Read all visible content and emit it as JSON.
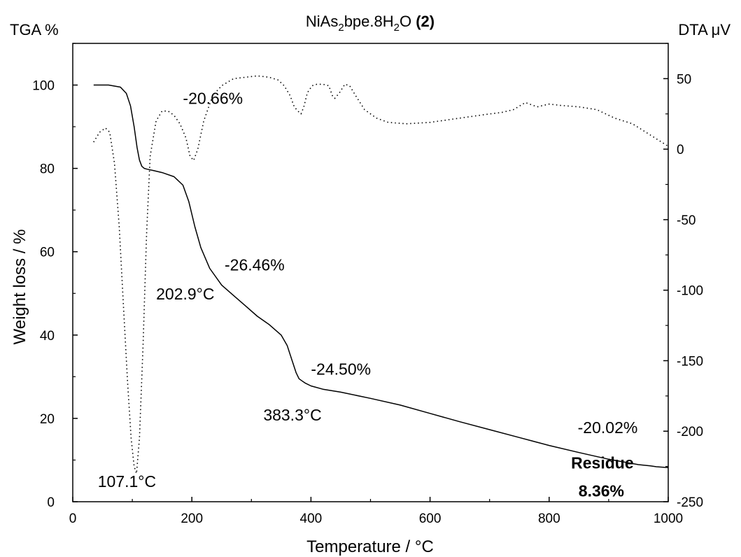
{
  "chart_data": {
    "type": "line",
    "title": {
      "formula_parts": [
        {
          "text": "NiAs",
          "style": "normal"
        },
        {
          "text": "2",
          "style": "sub"
        },
        {
          "text": "bpe.8H",
          "style": "normal"
        },
        {
          "text": "2",
          "style": "sub"
        },
        {
          "text": "O ",
          "style": "normal"
        },
        {
          "text": "(2)",
          "style": "bold"
        }
      ]
    },
    "left_corner_label": "TGA %",
    "right_corner_label": "DTA μV",
    "xlabel": "Temperature / °C",
    "ylabel": "Weight loss / %",
    "xlim": [
      0,
      1000
    ],
    "ylim": [
      0,
      110
    ],
    "y2lim": [
      -250,
      75
    ],
    "x_ticks": [
      0,
      200,
      400,
      600,
      800,
      1000
    ],
    "y_ticks": [
      0,
      20,
      40,
      60,
      80,
      100
    ],
    "y2_ticks": [
      -250,
      -200,
      -150,
      -100,
      -50,
      0,
      50
    ],
    "grid": false,
    "series": [
      {
        "axis": "left",
        "style": "solid",
        "x": [
          35,
          60,
          80,
          90,
          97,
          103,
          108,
          112,
          116,
          120,
          125,
          135,
          150,
          170,
          185,
          195,
          205,
          215,
          230,
          250,
          270,
          290,
          310,
          330,
          350,
          360,
          368,
          375,
          380,
          385,
          390,
          400,
          420,
          450,
          500,
          550,
          600,
          650,
          700,
          750,
          800,
          850,
          900,
          950,
          970,
          980,
          990,
          1000
        ],
        "y": [
          100,
          100,
          99.5,
          98,
          95,
          90,
          85,
          82,
          80.5,
          80,
          79.8,
          79.5,
          79,
          78,
          76,
          72,
          66,
          61,
          56,
          52,
          49.5,
          47,
          44.5,
          42.5,
          40,
          37.5,
          34,
          31,
          29.5,
          29,
          28.5,
          27.8,
          27,
          26.3,
          24.8,
          23.2,
          21.2,
          19.2,
          17.3,
          15.4,
          13.5,
          11.8,
          10.2,
          8.9,
          8.6,
          8.4,
          8.3,
          8.2
        ]
      },
      {
        "axis": "right",
        "style": "dotted",
        "x": [
          35,
          45,
          55,
          62,
          70,
          78,
          85,
          92,
          98,
          103,
          107.1,
          112,
          118,
          124,
          130,
          140,
          150,
          160,
          170,
          180,
          190,
          197,
          202.9,
          210,
          220,
          235,
          250,
          270,
          290,
          310,
          330,
          345,
          355,
          365,
          372,
          378,
          383.3,
          388,
          394,
          402,
          410,
          420,
          430,
          436,
          440,
          448,
          457,
          465,
          475,
          490,
          510,
          530,
          560,
          600,
          650,
          700,
          720,
          740,
          760,
          780,
          800,
          820,
          850,
          880,
          910,
          940,
          970,
          1000
        ],
        "y": [
          5,
          12,
          15,
          12,
          -10,
          -55,
          -110,
          -165,
          -205,
          -225,
          -230,
          -205,
          -140,
          -60,
          -5,
          20,
          27,
          27,
          24,
          18,
          8,
          -5,
          -8,
          0,
          20,
          38,
          45,
          50,
          51,
          52,
          51,
          49,
          45,
          38,
          30,
          27,
          25,
          30,
          40,
          45,
          46,
          46,
          45,
          38,
          36,
          40,
          46,
          45,
          38,
          28,
          22,
          19,
          18,
          19,
          22,
          25,
          26,
          28,
          33,
          30,
          32,
          31,
          30,
          28,
          22,
          18,
          10,
          2
        ]
      }
    ],
    "annotations": [
      {
        "text": "-20.66%",
        "x": 185,
        "y": 95.5,
        "weight": "normal",
        "anchor": "start"
      },
      {
        "text": "202.9°C",
        "x": 140,
        "y": 48.5,
        "weight": "normal",
        "anchor": "start"
      },
      {
        "text": "-26.46%",
        "x": 255,
        "y": 55.5,
        "weight": "normal",
        "anchor": "start"
      },
      {
        "text": "383.3°C",
        "x": 320,
        "y": 19.5,
        "weight": "normal",
        "anchor": "start"
      },
      {
        "text": "-24.50%",
        "x": 400,
        "y": 30.5,
        "weight": "normal",
        "anchor": "start"
      },
      {
        "text": "107.1°C",
        "x": 42,
        "y": 3.5,
        "weight": "normal",
        "anchor": "start"
      },
      {
        "text": "-20.02%",
        "x": 848,
        "y": 16.5,
        "weight": "normal",
        "anchor": "start"
      },
      {
        "text": "Residue",
        "x": 942,
        "y": 8,
        "weight": "bold",
        "anchor": "end"
      },
      {
        "text": "8.36%",
        "x": 926,
        "y": 1.3,
        "weight": "bold",
        "anchor": "end"
      }
    ]
  }
}
